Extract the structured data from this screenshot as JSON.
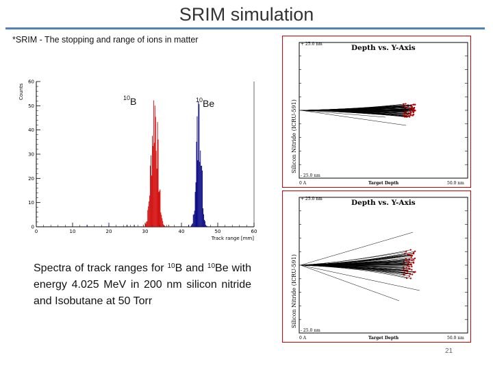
{
  "slide": {
    "title": "SRIM simulation",
    "subtitle": "*SRIM - The stopping and range of ions in matter",
    "page_number": "21"
  },
  "histogram": {
    "ylabel": "Counts",
    "xlabel": "Track range [mm]",
    "x_ticks": [
      "0",
      "10",
      "20",
      "30",
      "40",
      "50",
      "60"
    ],
    "y_ticks": [
      "0",
      "10",
      "20",
      "30",
      "40",
      "50",
      "60"
    ],
    "label_b": {
      "sup": "10",
      "base": "B"
    },
    "label_be": {
      "sup": "10",
      "base": "Be"
    },
    "colors": {
      "boron": "#d00000",
      "beryllium": "#000080",
      "axis": "#000000"
    }
  },
  "caption": {
    "line1_pre": "Spectra of track ranges for ",
    "sup1": "10",
    "line1_mid": "B and ",
    "sup2": "10",
    "line1_post": "Be with energy 4.025 MeV in 200 nm silicon nitride and Isobutane at 50 Torr"
  },
  "srim_plots": [
    {
      "title": "Depth vs. Y-Axis",
      "y_top": "+ 25.0 nm",
      "y_bottom": "- 25.0 nm",
      "y_axis_label": "Silicon Nitride (ICRU-591)",
      "x_left": "0 A",
      "x_center": "Target Depth",
      "x_right": "50.0 nm"
    },
    {
      "title": "Depth vs. Y-Axis",
      "y_top": "+ 25.0 nm",
      "y_bottom": "- 25.0 nm",
      "y_axis_label": "Silicon Nitride (ICRU-591)",
      "x_left": "0 A",
      "x_center": "Target Depth",
      "x_right": "50.0 nm"
    }
  ]
}
